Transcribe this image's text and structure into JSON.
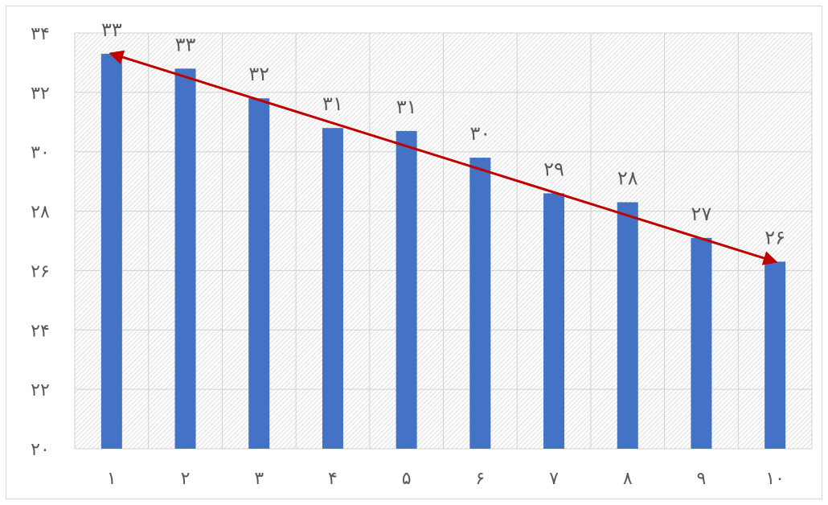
{
  "chart_data": {
    "type": "bar",
    "categories": [
      "١",
      "٢",
      "٣",
      "۴",
      "۵",
      "۶",
      "٧",
      "٨",
      "٩",
      "١٠"
    ],
    "values": [
      33.3,
      32.8,
      31.8,
      30.8,
      30.7,
      29.8,
      28.6,
      28.3,
      27.1,
      26.3
    ],
    "data_labels": [
      "٣٣",
      "٣٣",
      "٣٢",
      "٣١",
      "٣١",
      "٣٠",
      "٢٩",
      "٢٨",
      "٢٧",
      "٢۶"
    ],
    "ylim": [
      20,
      34
    ],
    "y_ticks": [
      20,
      22,
      24,
      26,
      28,
      30,
      32,
      34
    ],
    "y_tick_labels": [
      "٢٠",
      "٢٢",
      "٢۴",
      "٢۶",
      "٢٨",
      "٣٠",
      "٣٢",
      "٣۴"
    ],
    "grid": true,
    "plot_background": "hatched",
    "bar_color": "#4472C4",
    "trend_arrow": {
      "from_category_index": 0,
      "to_category_index": 9,
      "direction": "double-headed",
      "color": "#C00000"
    },
    "title": "",
    "xlabel": "",
    "ylabel": ""
  }
}
